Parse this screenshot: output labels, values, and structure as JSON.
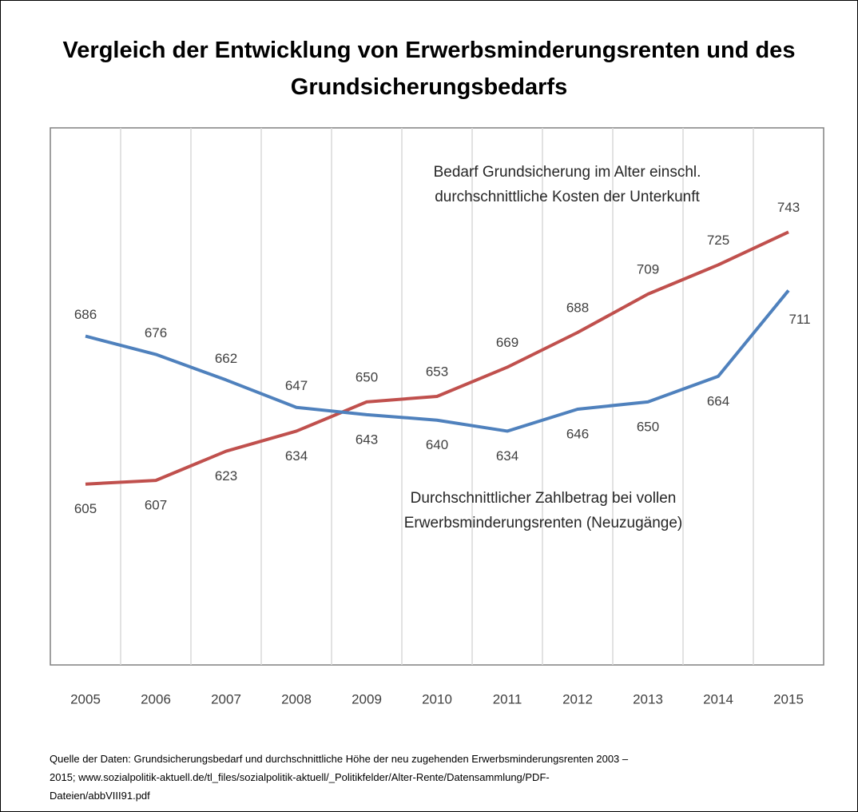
{
  "chart_data": {
    "type": "line",
    "title": "Vergleich der Entwicklung von Erwerbsminderungsrenten und des Grundsicherungsbedarfs",
    "categories": [
      "2005",
      "2006",
      "2007",
      "2008",
      "2009",
      "2010",
      "2011",
      "2012",
      "2013",
      "2014",
      "2015"
    ],
    "series": [
      {
        "name": "Bedarf Grundsicherung im Alter einschl. durchschnittliche Kosten der Unterkunft",
        "color": "#c0504d",
        "values": [
          605,
          607,
          623,
          634,
          650,
          653,
          669,
          688,
          709,
          725,
          743
        ]
      },
      {
        "name": "Durchschnittlicher Zahlbetrag bei vollen Erwerbsminderungsrenten (Neuzugänge)",
        "color": "#4f81bd",
        "values": [
          686,
          676,
          662,
          647,
          643,
          640,
          634,
          646,
          650,
          664,
          711
        ]
      }
    ],
    "ylim": [
      506,
      800
    ],
    "grid": true,
    "source": "Quelle der Daten: Grundsicherungsbedarf und durchschnittliche Höhe der neu zugehenden Erwerbsminderungsrenten 2003 – 2015; www.sozialpolitik-aktuell.de/tl_files/sozialpolitik-aktuell/_Politikfelder/Alter-Rente/Datensammlung/PDF-Dateien/abbVIII91.pdf"
  }
}
